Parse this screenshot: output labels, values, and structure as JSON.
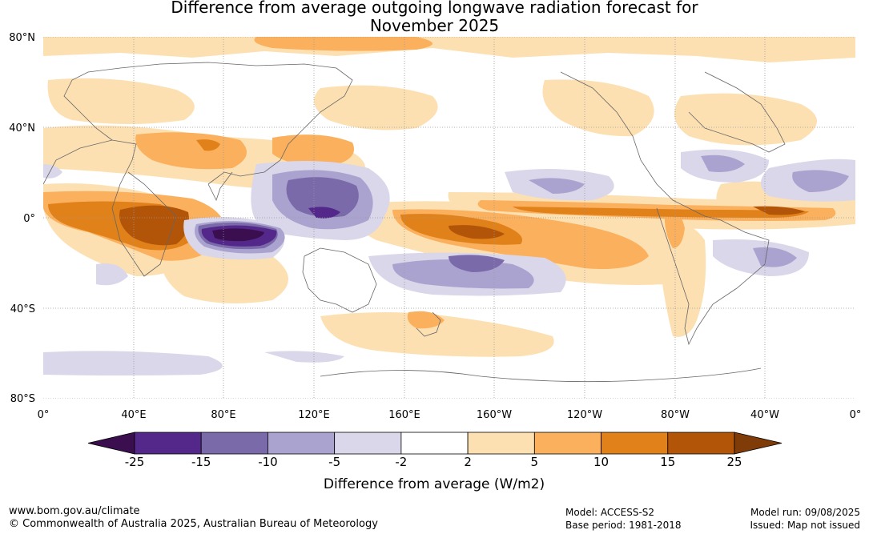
{
  "title_line1": "Difference from average outgoing longwave radiation forecast for",
  "title_line2": "November 2025",
  "lat_labels": [
    {
      "text": "80°N",
      "lat": 80
    },
    {
      "text": "40°N",
      "lat": 40
    },
    {
      "text": "0°",
      "lat": 0
    },
    {
      "text": "40°S",
      "lat": -40
    },
    {
      "text": "80°S",
      "lat": -80
    }
  ],
  "lon_labels": [
    {
      "text": "0°",
      "lon": 0
    },
    {
      "text": "40°E",
      "lon": 40
    },
    {
      "text": "80°E",
      "lon": 80
    },
    {
      "text": "120°E",
      "lon": 120
    },
    {
      "text": "160°E",
      "lon": 160
    },
    {
      "text": "160°W",
      "lon": 200
    },
    {
      "text": "120°W",
      "lon": 240
    },
    {
      "text": "80°W",
      "lon": 280
    },
    {
      "text": "40°W",
      "lon": 320
    },
    {
      "text": "0°",
      "lon": 360
    }
  ],
  "colorbar": {
    "label": "Difference from average (W/m2)",
    "ticks": [
      "-25",
      "-15",
      "-10",
      "-5",
      "-2",
      "2",
      "5",
      "10",
      "15",
      "25"
    ],
    "colors": [
      "#3b0f4f",
      "#54288a",
      "#7b6aaa",
      "#aba3cf",
      "#d9d7e9",
      "#ffffff",
      "#fde0b2",
      "#fbb05e",
      "#e0811a",
      "#b35509",
      "#7f3b08"
    ]
  },
  "footer": {
    "site": "www.bom.gov.au/climate",
    "copyright": "© Commonwealth of Australia 2025, Australian Bureau of Meteorology",
    "model": "Model: ACCESS-S2",
    "base_period": "Base period: 1981-2018",
    "model_run": "Model run: 09/08/2025",
    "issued": "Issued: Map not issued"
  }
}
